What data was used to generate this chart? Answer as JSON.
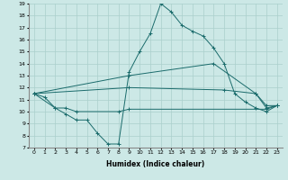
{
  "xlabel": "Humidex (Indice chaleur)",
  "xlim": [
    -0.5,
    23.5
  ],
  "ylim": [
    7,
    19
  ],
  "xticks": [
    0,
    1,
    2,
    3,
    4,
    5,
    6,
    7,
    8,
    9,
    10,
    11,
    12,
    13,
    14,
    15,
    16,
    17,
    18,
    19,
    20,
    21,
    22,
    23
  ],
  "yticks": [
    7,
    8,
    9,
    10,
    11,
    12,
    13,
    14,
    15,
    16,
    17,
    18,
    19
  ],
  "bg_color": "#cce8e6",
  "line_color": "#1a6b6b",
  "grid_color": "#aacfcc",
  "lines": [
    {
      "x": [
        0,
        1,
        2,
        3,
        4,
        5,
        6,
        7,
        8,
        9,
        10,
        11,
        12,
        13,
        14,
        15,
        16,
        17,
        18,
        19,
        20,
        21,
        22,
        23
      ],
      "y": [
        11.5,
        11.2,
        10.3,
        9.8,
        9.3,
        9.3,
        8.2,
        7.3,
        7.3,
        13.3,
        15.0,
        16.5,
        19.0,
        18.3,
        17.2,
        16.7,
        16.3,
        15.3,
        14.0,
        11.5,
        10.8,
        10.3,
        10.0,
        10.5
      ]
    },
    {
      "x": [
        0,
        9,
        17,
        21,
        22,
        23
      ],
      "y": [
        11.5,
        13.0,
        14.0,
        11.5,
        10.5,
        10.5
      ]
    },
    {
      "x": [
        0,
        9,
        18,
        21,
        22,
        23
      ],
      "y": [
        11.5,
        12.0,
        11.8,
        11.5,
        10.3,
        10.5
      ]
    },
    {
      "x": [
        0,
        2,
        3,
        4,
        8,
        9,
        22,
        23
      ],
      "y": [
        11.5,
        10.3,
        10.3,
        10.0,
        10.0,
        10.2,
        10.2,
        10.5
      ]
    }
  ]
}
